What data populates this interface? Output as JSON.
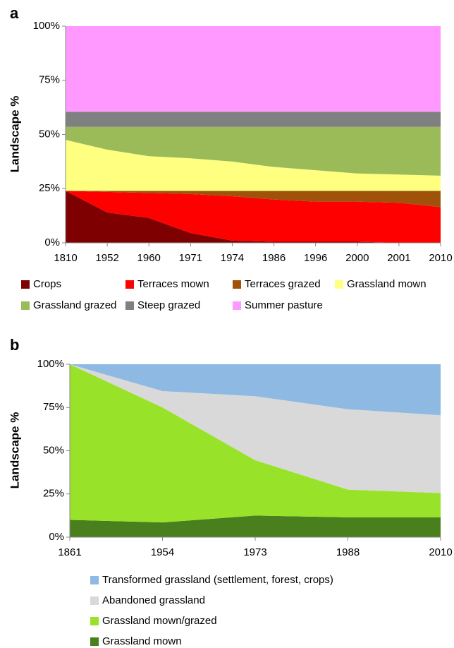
{
  "chart_data": [
    {
      "type": "area",
      "panel_label": "a",
      "ylabel": "Landscape %",
      "categories": [
        "1810",
        "1952",
        "1960",
        "1971",
        "1974",
        "1986",
        "1996",
        "2000",
        "2001",
        "2010"
      ],
      "ylim": [
        0,
        100
      ],
      "yticks": [
        {
          "value": 0,
          "label": "0%"
        },
        {
          "value": 25,
          "label": "25%"
        },
        {
          "value": 50,
          "label": "50%"
        },
        {
          "value": 75,
          "label": "75%"
        },
        {
          "value": 100,
          "label": "100%"
        }
      ],
      "stacked": true,
      "grid": false,
      "series": [
        {
          "name": "Crops",
          "color": "#7f0000",
          "values": [
            24,
            14,
            11.5,
            4.5,
            1,
            0.5,
            0.5,
            0.5,
            0,
            0
          ]
        },
        {
          "name": "Terraces mown",
          "color": "#ff0000",
          "values": [
            0,
            9.5,
            11.5,
            18,
            20.5,
            19.5,
            18.5,
            18.5,
            18.5,
            16.5
          ]
        },
        {
          "name": "Terraces grazed",
          "color": "#a0520a",
          "values": [
            0,
            0.5,
            1,
            1.5,
            2.5,
            4,
            5,
            5,
            5.5,
            7.5
          ]
        },
        {
          "name": "Grassland mown",
          "color": "#ffff80",
          "values": [
            23.5,
            19,
            16,
            15,
            13.5,
            11,
            9.5,
            8,
            7.5,
            7
          ]
        },
        {
          "name": "Grassland grazed",
          "color": "#9bbb59",
          "values": [
            6,
            10.5,
            13.5,
            14.5,
            16,
            18.5,
            20,
            21.5,
            22,
            22.5
          ]
        },
        {
          "name": "Steep grazed",
          "color": "#808080",
          "values": [
            7,
            7,
            7,
            7,
            7,
            7,
            7,
            7,
            7,
            7
          ]
        },
        {
          "name": "Summer pasture",
          "color": "#ff99ff",
          "values": [
            39.5,
            39.5,
            39.5,
            39.5,
            39.5,
            39.5,
            39.5,
            39.5,
            39.5,
            39.5
          ]
        }
      ]
    },
    {
      "type": "area",
      "panel_label": "b",
      "ylabel": "Landscape %",
      "categories": [
        "1861",
        "1954",
        "1973",
        "1988",
        "2010"
      ],
      "ylim": [
        0,
        100
      ],
      "yticks": [
        {
          "value": 0,
          "label": "0%"
        },
        {
          "value": 25,
          "label": "25%"
        },
        {
          "value": 50,
          "label": "50%"
        },
        {
          "value": 75,
          "label": "75%"
        },
        {
          "value": 100,
          "label": "100%"
        }
      ],
      "stacked": true,
      "grid": false,
      "series": [
        {
          "name": "Grassland mown",
          "color": "#4a7f1d",
          "values": [
            10,
            8.5,
            12.5,
            11.5,
            11.5
          ]
        },
        {
          "name": "Grassland mown/grazed",
          "color": "#99e22a",
          "values": [
            90,
            66.5,
            32,
            16,
            14
          ]
        },
        {
          "name": "Abandoned grassland",
          "color": "#d9d9d9",
          "values": [
            0,
            9.5,
            37,
            46.5,
            45
          ]
        },
        {
          "name": "Transformed grassland (settlement, forest, crops)",
          "color": "#8db9e2",
          "values": [
            0,
            15.5,
            18.5,
            26,
            29.5
          ]
        }
      ]
    }
  ]
}
